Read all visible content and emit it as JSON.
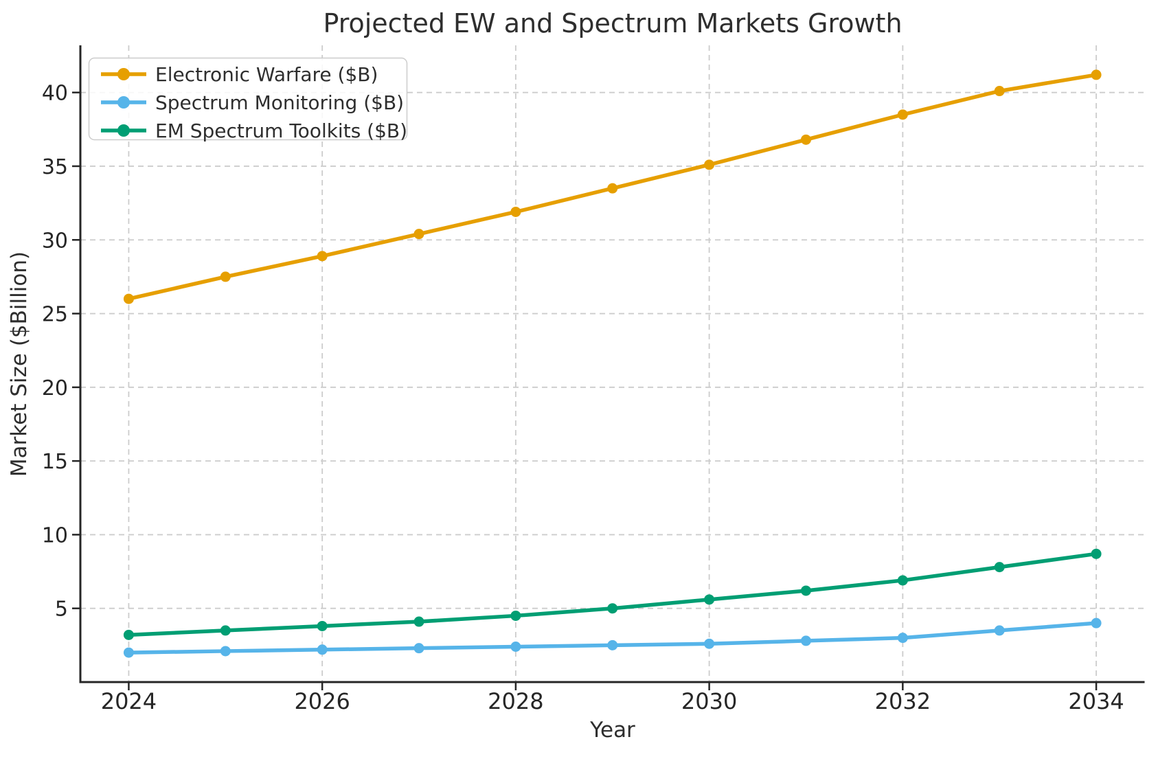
{
  "chart_data": {
    "type": "line",
    "title": "Projected EW and Spectrum Markets Growth",
    "xlabel": "Year",
    "ylabel": "Market Size ($Billion)",
    "x": [
      2024,
      2025,
      2026,
      2027,
      2028,
      2029,
      2030,
      2031,
      2032,
      2033,
      2034
    ],
    "series": [
      {
        "name": "Electronic Warfare ($B)",
        "color": "#E69F00",
        "values": [
          26.0,
          27.5,
          28.9,
          30.4,
          31.9,
          33.5,
          35.1,
          36.8,
          38.5,
          40.1,
          41.2
        ]
      },
      {
        "name": "Spectrum Monitoring ($B)",
        "color": "#56B4E9",
        "values": [
          2.0,
          2.1,
          2.2,
          2.3,
          2.4,
          2.5,
          2.6,
          2.8,
          3.0,
          3.5,
          4.0
        ]
      },
      {
        "name": "EM Spectrum Toolkits ($B)",
        "color": "#009E73",
        "values": [
          3.2,
          3.5,
          3.8,
          4.1,
          4.5,
          5.0,
          5.6,
          6.2,
          6.9,
          7.8,
          8.7
        ]
      }
    ],
    "xlim": [
      2023.5,
      2034.5
    ],
    "ylim": [
      0,
      43.2
    ],
    "xticks": {
      "values": [
        2024,
        2026,
        2028,
        2030,
        2032,
        2034
      ],
      "labels": [
        "2024",
        "2026",
        "2028",
        "2030",
        "2032",
        "2034"
      ]
    },
    "yticks": {
      "values": [
        5,
        10,
        15,
        20,
        25,
        30,
        35,
        40
      ],
      "labels": [
        "5",
        "10",
        "15",
        "20",
        "25",
        "30",
        "35",
        "40"
      ]
    },
    "grid": true,
    "grid_style": "dashed",
    "legend_position": "upper-left",
    "colors": {
      "grid": "#cccccc",
      "spine": "#262626",
      "text": "#2e2e2e",
      "background": "#ffffff",
      "legend_border": "#cccccc",
      "legend_background": "#ffffff"
    }
  }
}
